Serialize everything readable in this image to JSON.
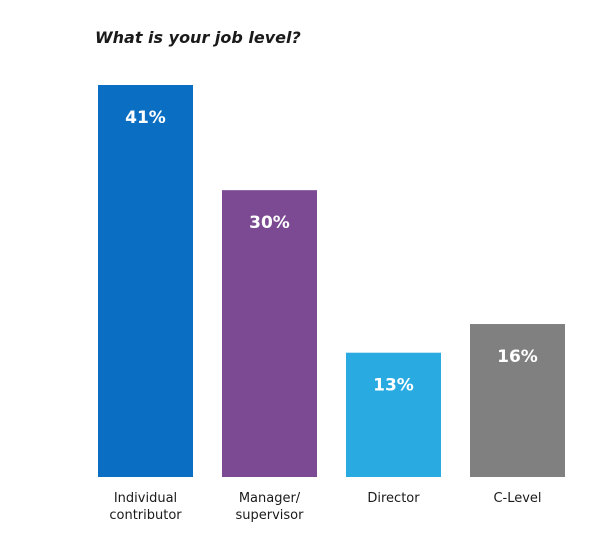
{
  "chart_data": {
    "type": "bar",
    "title": "What is your job level?",
    "xlabel": "",
    "ylabel": "",
    "ylim": [
      0,
      41
    ],
    "grid": false,
    "legend": "none",
    "categories": [
      [
        "Individual",
        "contributor"
      ],
      [
        "Manager/",
        "supervisor"
      ],
      [
        "Director"
      ],
      [
        "C-Level"
      ]
    ],
    "values": [
      41,
      30,
      13,
      16
    ],
    "data_labels": [
      "41%",
      "30%",
      "13%",
      "16%"
    ],
    "colors": [
      "#0a6fc2",
      "#7b4a93",
      "#29abe2",
      "#808080"
    ],
    "label_color": "#ffffff"
  }
}
